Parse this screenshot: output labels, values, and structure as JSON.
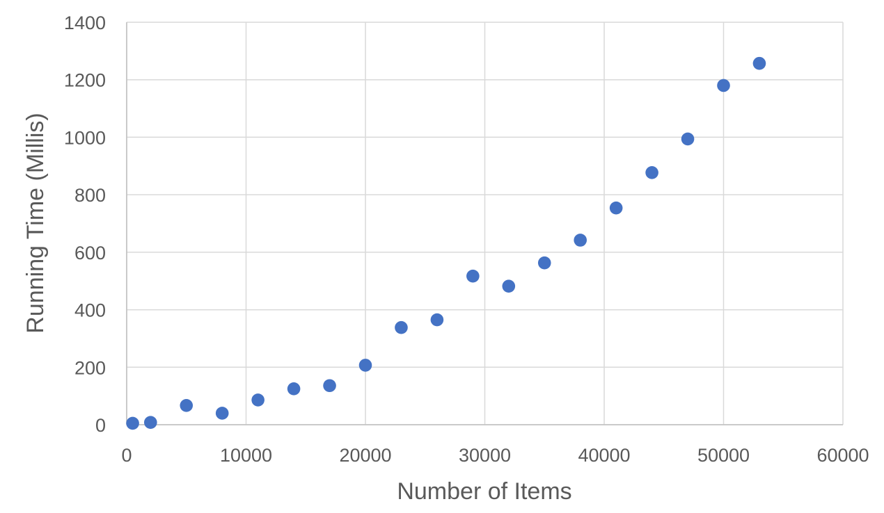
{
  "chart_data": {
    "type": "scatter",
    "title": "",
    "xlabel": "Number of Items",
    "ylabel": "Running Time (Millis)",
    "xlim": [
      0,
      60000
    ],
    "ylim": [
      0,
      1400
    ],
    "x_ticks": [
      "0",
      "10000",
      "20000",
      "30000",
      "40000",
      "50000",
      "60000"
    ],
    "y_ticks": [
      "0",
      "200",
      "400",
      "600",
      "800",
      "1000",
      "1200",
      "1400"
    ],
    "grid": true,
    "legend": false,
    "series": [
      {
        "points": [
          [
            500,
            5
          ],
          [
            2000,
            8
          ],
          [
            5000,
            67
          ],
          [
            8000,
            40
          ],
          [
            11000,
            86
          ],
          [
            14000,
            125
          ],
          [
            17000,
            136
          ],
          [
            20000,
            207
          ],
          [
            23000,
            338
          ],
          [
            26000,
            365
          ],
          [
            29000,
            517
          ],
          [
            32000,
            482
          ],
          [
            35000,
            563
          ],
          [
            38000,
            642
          ],
          [
            41000,
            754
          ],
          [
            44000,
            877
          ],
          [
            47000,
            994
          ],
          [
            50000,
            1180
          ],
          [
            53000,
            1257
          ]
        ]
      }
    ],
    "colors": {
      "marker": "#4472C4",
      "gridline": "#D9D9D9",
      "axis_line": "#BFBFBF",
      "text": "#595959",
      "background": "#FFFFFF"
    }
  }
}
